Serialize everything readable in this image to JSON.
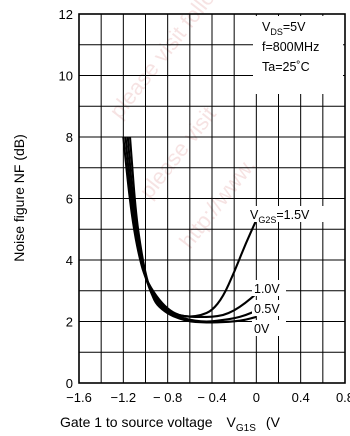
{
  "chart_data": {
    "type": "line",
    "ylabel": "Noise figure  NF  (dB)",
    "xlabel_main": "Gate 1 to source voltage",
    "xlabel_sym": "V",
    "xlabel_sub": "G1S",
    "xlabel_unit": "(V",
    "xlim": [
      -1.6,
      0.8
    ],
    "ylim": [
      0,
      12
    ],
    "grid": true,
    "x_tick_labels": [
      "−1.6",
      "−1.2",
      "− 0.8",
      "− 0.4",
      "0",
      "0.4",
      "0.8"
    ],
    "y_tick_labels": [
      "0",
      "2",
      "4",
      "6",
      "8",
      "10",
      "12"
    ],
    "conditions": [
      {
        "main": "V",
        "sub": "DS",
        "rest": "=5V"
      },
      {
        "main": "f=800MHz",
        "sub": "",
        "rest": ""
      },
      {
        "main": "Ta=25˚C",
        "sub": "",
        "rest": ""
      }
    ],
    "series": [
      {
        "name": "V_G2S=1.5V",
        "label_main": "V",
        "label_sub": "G2S",
        "label_rest": "=1.5V",
        "x": [
          -1.2,
          -1.15,
          -1.1,
          -1.05,
          -1.0,
          -0.9,
          -0.8,
          -0.7,
          -0.6,
          -0.5,
          -0.4,
          -0.3,
          -0.2,
          -0.1,
          0.0
        ],
        "y": [
          8.0,
          6.2,
          4.9,
          4.0,
          3.4,
          2.8,
          2.4,
          2.2,
          2.15,
          2.2,
          2.35,
          2.8,
          3.6,
          4.5,
          5.3
        ]
      },
      {
        "name": "1.0V",
        "label_main": "1.0V",
        "label_sub": "",
        "label_rest": "",
        "x": [
          -1.18,
          -1.13,
          -1.08,
          -1.03,
          -0.98,
          -0.9,
          -0.8,
          -0.7,
          -0.6,
          -0.5,
          -0.4,
          -0.3,
          -0.2,
          -0.1,
          0.0
        ],
        "y": [
          8.0,
          6.0,
          4.7,
          3.8,
          3.2,
          2.7,
          2.35,
          2.2,
          2.15,
          2.15,
          2.15,
          2.2,
          2.35,
          2.6,
          2.9
        ]
      },
      {
        "name": "0.5V",
        "label_main": "0.5V",
        "label_sub": "",
        "label_rest": "",
        "x": [
          -1.16,
          -1.11,
          -1.06,
          -1.01,
          -0.96,
          -0.9,
          -0.8,
          -0.7,
          -0.6,
          -0.5,
          -0.4,
          -0.3,
          -0.2,
          -0.1,
          0.0
        ],
        "y": [
          8.0,
          5.8,
          4.5,
          3.6,
          3.0,
          2.6,
          2.3,
          2.15,
          2.05,
          2.0,
          2.0,
          2.05,
          2.1,
          2.2,
          2.35
        ]
      },
      {
        "name": "0V",
        "label_main": "0V",
        "label_sub": "",
        "label_rest": "",
        "x": [
          -1.14,
          -1.09,
          -1.04,
          -0.99,
          -0.94,
          -0.9,
          -0.8,
          -0.7,
          -0.6,
          -0.5,
          -0.4,
          -0.3,
          -0.2,
          -0.1,
          0.0
        ],
        "y": [
          8.0,
          5.6,
          4.3,
          3.4,
          2.85,
          2.55,
          2.25,
          2.1,
          2.0,
          1.97,
          1.97,
          1.98,
          2.0,
          2.05,
          2.15
        ]
      }
    ],
    "watermarks": [
      "please visit follow...",
      "http://www.",
      "please visit"
    ]
  }
}
